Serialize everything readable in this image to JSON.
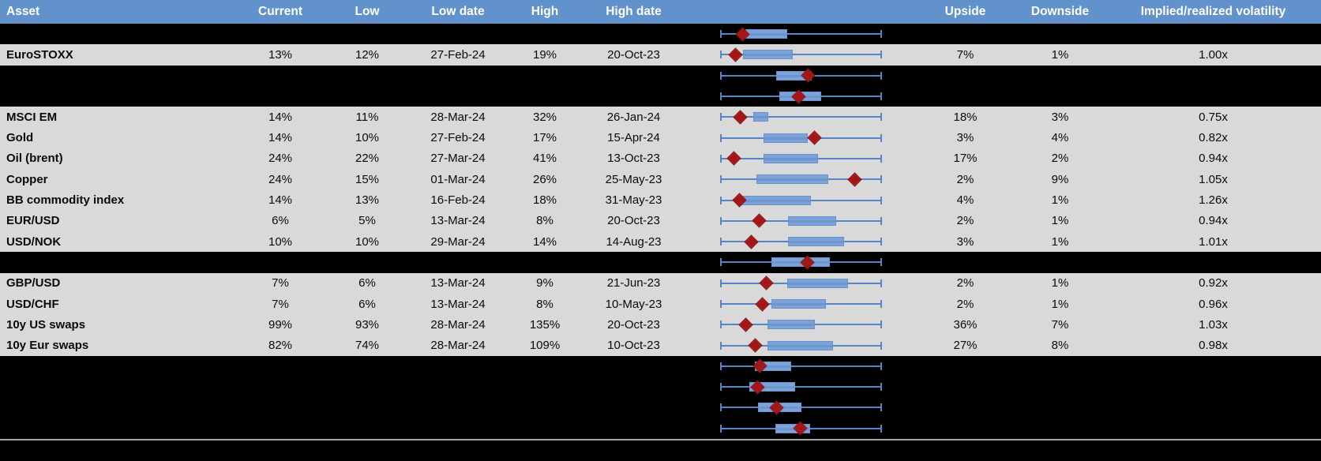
{
  "colors": {
    "header_bg": "#6292cc",
    "header_text": "#ffffff",
    "data_row_bg": "#d9d9d9",
    "spacer_row_bg": "#000000",
    "whisker_blue": "#5585c7",
    "box_fill_blue": "#7ba3d9",
    "box_border_blue": "#6a92c8",
    "marker_dark_red": "#a51717",
    "separator_gray": "#a6a6a6"
  },
  "chart_data": {
    "type": "table",
    "title": "",
    "notes": "Financial volatility table with an embedded horizontal box-and-whisker chart per row; red diamond marks current level. Box/marker positions are fractions (0-1) of the whisker span, which has no printed numeric axis.",
    "legend_position": "none",
    "grid": false,
    "columns": [
      "Asset",
      "Current",
      "Low",
      "Low date",
      "High",
      "High date",
      "",
      "Upside",
      "Downside",
      "Implied/realized volatility"
    ],
    "rows": [
      {
        "label": "",
        "current": "",
        "low": "",
        "low_date": "",
        "high": "",
        "high_date": "",
        "upside": "",
        "downside": "",
        "iv_rv": "",
        "whisker": [
          0,
          1
        ],
        "box": {
          "q1": 0.158,
          "q3": 0.414,
          "marker": 0.138
        }
      },
      {
        "label": "EuroSTOXX",
        "current": "13%",
        "low": "12%",
        "low_date": "27-Feb-24",
        "high": "19%",
        "high_date": "20-Oct-23",
        "upside": "7%",
        "downside": "1%",
        "iv_rv": "1.00x",
        "whisker": [
          0,
          1
        ],
        "box": {
          "q1": 0.141,
          "q3": 0.45,
          "marker": 0.097
        }
      },
      {
        "label": "",
        "current": "",
        "low": "",
        "low_date": "",
        "high": "",
        "high_date": "",
        "upside": "",
        "downside": "",
        "iv_rv": "",
        "whisker": [
          0,
          1
        ],
        "box": {
          "q1": 0.345,
          "q3": 0.567,
          "marker": 0.542
        }
      },
      {
        "label": "",
        "current": "",
        "low": "",
        "low_date": "",
        "high": "",
        "high_date": "",
        "upside": "",
        "downside": "",
        "iv_rv": "",
        "whisker": [
          0,
          1
        ],
        "box": {
          "q1": 0.365,
          "q3": 0.626,
          "marker": 0.483
        }
      },
      {
        "label": "MSCI EM",
        "current": "14%",
        "low": "11%",
        "low_date": "28-Mar-24",
        "high": "32%",
        "high_date": "26-Jan-24",
        "upside": "18%",
        "downside": "3%",
        "iv_rv": "0.75x",
        "whisker": [
          0,
          1
        ],
        "box": {
          "q1": 0.207,
          "q3": 0.296,
          "marker": 0.123
        }
      },
      {
        "label": "Gold",
        "current": "14%",
        "low": "10%",
        "low_date": "27-Feb-24",
        "high": "17%",
        "high_date": "15-Apr-24",
        "upside": "3%",
        "downside": "4%",
        "iv_rv": "0.82x",
        "whisker": [
          0,
          1
        ],
        "box": {
          "q1": 0.266,
          "q3": 0.542,
          "marker": 0.581
        }
      },
      {
        "label": "Oil (brent)",
        "current": "24%",
        "low": "22%",
        "low_date": "27-Mar-24",
        "high": "41%",
        "high_date": "13-Oct-23",
        "upside": "17%",
        "downside": "2%",
        "iv_rv": "0.94x",
        "whisker": [
          0,
          1
        ],
        "box": {
          "q1": 0.266,
          "q3": 0.606,
          "marker": 0.084
        }
      },
      {
        "label": "Copper",
        "current": "24%",
        "low": "15%",
        "low_date": "01-Mar-24",
        "high": "26%",
        "high_date": "25-May-23",
        "upside": "2%",
        "downside": "9%",
        "iv_rv": "1.05x",
        "whisker": [
          0,
          1
        ],
        "box": {
          "q1": 0.222,
          "q3": 0.67,
          "marker": 0.833
        }
      },
      {
        "label": "BB commodity index",
        "current": "14%",
        "low": "13%",
        "low_date": "16-Feb-24",
        "high": "18%",
        "high_date": "31-May-23",
        "upside": "4%",
        "downside": "1%",
        "iv_rv": "1.26x",
        "whisker": [
          0,
          1
        ],
        "box": {
          "q1": 0.108,
          "q3": 0.561,
          "marker": 0.118
        }
      },
      {
        "label": "EUR/USD",
        "current": "6%",
        "low": "5%",
        "low_date": "13-Mar-24",
        "high": "8%",
        "high_date": "20-Oct-23",
        "upside": "2%",
        "downside": "1%",
        "iv_rv": "0.94x",
        "whisker": [
          0,
          1
        ],
        "box": {
          "q1": 0.419,
          "q3": 0.719,
          "marker": 0.241
        }
      },
      {
        "label": "USD/NOK",
        "current": "10%",
        "low": "10%",
        "low_date": "29-Mar-24",
        "high": "14%",
        "high_date": "14-Aug-23",
        "upside": "3%",
        "downside": "1%",
        "iv_rv": "1.01x",
        "whisker": [
          0,
          1
        ],
        "box": {
          "q1": 0.419,
          "q3": 0.764,
          "marker": 0.192
        }
      },
      {
        "label": "",
        "current": "",
        "low": "",
        "low_date": "",
        "high": "",
        "high_date": "",
        "upside": "",
        "downside": "",
        "iv_rv": "",
        "whisker": [
          0,
          1
        ],
        "box": {
          "q1": 0.315,
          "q3": 0.68,
          "marker": 0.537
        }
      },
      {
        "label": "GBP/USD",
        "current": "7%",
        "low": "6%",
        "low_date": "13-Mar-24",
        "high": "9%",
        "high_date": "21-Jun-23",
        "upside": "2%",
        "downside": "1%",
        "iv_rv": "0.92x",
        "whisker": [
          0,
          1
        ],
        "box": {
          "q1": 0.414,
          "q3": 0.788,
          "marker": 0.286
        }
      },
      {
        "label": "USD/CHF",
        "current": "7%",
        "low": "6%",
        "low_date": "13-Mar-24",
        "high": "8%",
        "high_date": "10-May-23",
        "upside": "2%",
        "downside": "1%",
        "iv_rv": "0.96x",
        "whisker": [
          0,
          1
        ],
        "box": {
          "q1": 0.315,
          "q3": 0.655,
          "marker": 0.261
        }
      },
      {
        "label": "10y US swaps",
        "current": "99%",
        "low": "93%",
        "low_date": "28-Mar-24",
        "high": "135%",
        "high_date": "20-Oct-23",
        "upside": "36%",
        "downside": "7%",
        "iv_rv": "1.03x",
        "whisker": [
          0,
          1
        ],
        "box": {
          "q1": 0.291,
          "q3": 0.586,
          "marker": 0.158
        }
      },
      {
        "label": "10y Eur swaps",
        "current": "82%",
        "low": "74%",
        "low_date": "28-Mar-24",
        "high": "109%",
        "high_date": "10-Oct-23",
        "upside": "27%",
        "downside": "8%",
        "iv_rv": "0.98x",
        "whisker": [
          0,
          1
        ],
        "box": {
          "q1": 0.291,
          "q3": 0.7,
          "marker": 0.217
        }
      },
      {
        "label": "",
        "current": "",
        "low": "",
        "low_date": "",
        "high": "",
        "high_date": "",
        "upside": "",
        "downside": "",
        "iv_rv": "",
        "whisker": [
          0,
          1
        ],
        "box": {
          "q1": 0.217,
          "q3": 0.437,
          "marker": 0.245
        }
      },
      {
        "label": "",
        "current": "",
        "low": "",
        "low_date": "",
        "high": "",
        "high_date": "",
        "upside": "",
        "downside": "",
        "iv_rv": "",
        "whisker": [
          0,
          1
        ],
        "box": {
          "q1": 0.182,
          "q3": 0.464,
          "marker": 0.232
        }
      },
      {
        "label": "",
        "current": "",
        "low": "",
        "low_date": "",
        "high": "",
        "high_date": "",
        "upside": "",
        "downside": "",
        "iv_rv": "",
        "whisker": [
          0,
          1
        ],
        "box": {
          "q1": 0.236,
          "q3": 0.502,
          "marker": 0.35
        }
      },
      {
        "label": "",
        "current": "",
        "low": "",
        "low_date": "",
        "high": "",
        "high_date": "",
        "upside": "",
        "downside": "",
        "iv_rv": "",
        "whisker": [
          0,
          1
        ],
        "box": {
          "q1": 0.34,
          "q3": 0.557,
          "marker": 0.494
        }
      }
    ]
  }
}
